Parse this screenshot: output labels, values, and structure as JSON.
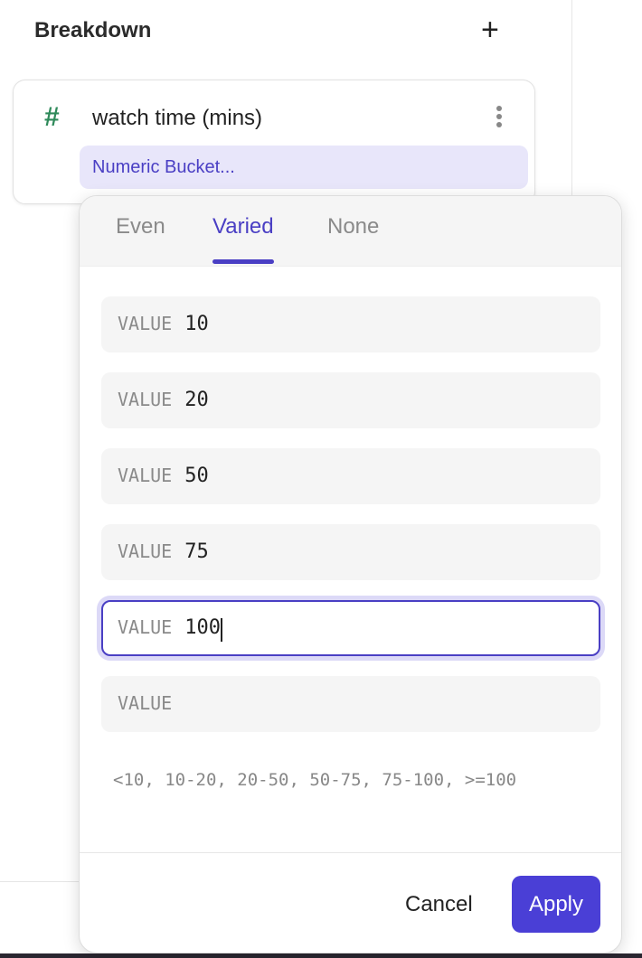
{
  "header": {
    "title": "Breakdown",
    "add_icon": "plus-icon"
  },
  "breakdown_item": {
    "type_icon": "hash-icon",
    "field": "watch time (mins)",
    "menu_icon": "kebab-icon",
    "bucket_label": "Numeric Bucket..."
  },
  "popup": {
    "tabs": [
      {
        "label": "Even"
      },
      {
        "label": "Varied",
        "active": true
      },
      {
        "label": "None"
      }
    ],
    "inputs": [
      {
        "label": "VALUE",
        "value": "10"
      },
      {
        "label": "VALUE",
        "value": "20"
      },
      {
        "label": "VALUE",
        "value": "50"
      },
      {
        "label": "VALUE",
        "value": "75"
      },
      {
        "label": "VALUE",
        "value": "100",
        "focused": true
      },
      {
        "label": "VALUE",
        "value": ""
      }
    ],
    "summary": "<10, 10-20, 20-50, 50-75, 75-100, >=100",
    "cancel_label": "Cancel",
    "apply_label": "Apply"
  },
  "colors": {
    "accent": "#4a3fd6",
    "hash": "#2f8a5a",
    "bucket_bg": "#e8e6fa"
  }
}
